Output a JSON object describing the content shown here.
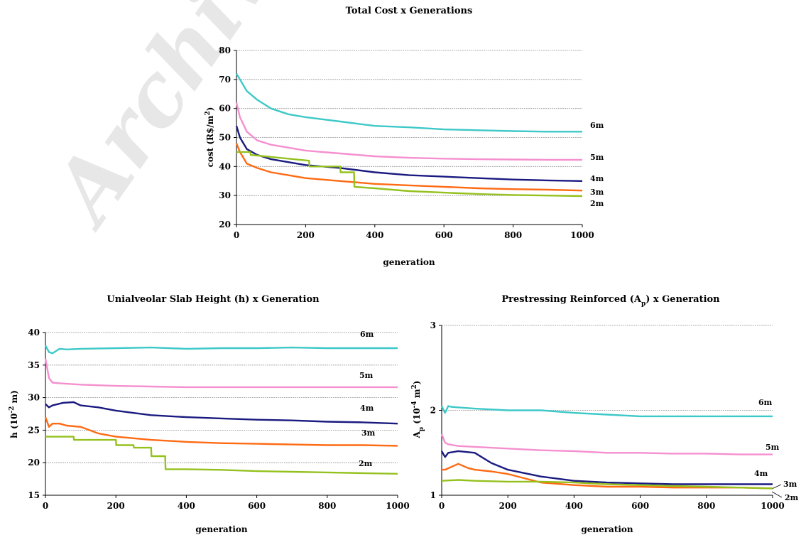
{
  "watermark": "Archive",
  "chart_data": [
    {
      "type": "line",
      "title": "Total Cost x Generations",
      "xlabel": "generation",
      "ylabel": "cost (R$/m²)",
      "ylabel_html": {
        "main": "cost (R$/m",
        "sup": "2",
        "tail": ")"
      },
      "xlim": [
        0,
        1000
      ],
      "ylim": [
        20,
        80
      ],
      "xticks": [
        0,
        200,
        400,
        600,
        800,
        1000
      ],
      "yticks": [
        20,
        30,
        40,
        50,
        60,
        70,
        80
      ],
      "grid": true,
      "series": [
        {
          "name": "6m",
          "color": "#3ec8c8",
          "x": [
            0,
            10,
            30,
            60,
            100,
            150,
            200,
            300,
            400,
            500,
            600,
            700,
            800,
            900,
            1000
          ],
          "y": [
            72,
            70,
            66,
            63,
            60,
            58,
            57,
            55.5,
            54,
            53.5,
            52.8,
            52.5,
            52.2,
            52,
            52
          ]
        },
        {
          "name": "5m",
          "color": "#f58fcf",
          "x": [
            0,
            10,
            30,
            60,
            100,
            150,
            200,
            300,
            400,
            500,
            600,
            700,
            800,
            900,
            1000
          ],
          "y": [
            62,
            57,
            52,
            49,
            47.5,
            46.5,
            45.5,
            44.5,
            43.5,
            43,
            42.7,
            42.5,
            42.4,
            42.3,
            42.3
          ]
        },
        {
          "name": "4m",
          "color": "#1a1a80",
          "x": [
            0,
            10,
            30,
            60,
            100,
            150,
            200,
            300,
            400,
            500,
            600,
            700,
            800,
            900,
            1000
          ],
          "y": [
            54,
            50,
            46,
            44,
            42.5,
            41.5,
            40.5,
            39.5,
            38,
            37,
            36.5,
            36,
            35.5,
            35.2,
            35
          ]
        },
        {
          "name": "3m",
          "color": "#ff6a13",
          "x": [
            0,
            10,
            30,
            60,
            100,
            150,
            200,
            300,
            400,
            500,
            600,
            700,
            800,
            900,
            1000
          ],
          "y": [
            48,
            45,
            41,
            39.5,
            38,
            37,
            36,
            35,
            34,
            33.5,
            33,
            32.5,
            32.2,
            32,
            31.7
          ]
        },
        {
          "name": "2m",
          "color": "#95c11f",
          "x": [
            0,
            40,
            41,
            210,
            211,
            300,
            301,
            340,
            341,
            400,
            500,
            600,
            700,
            800,
            900,
            1000
          ],
          "y": [
            45,
            45,
            44,
            42,
            40,
            40,
            38,
            38,
            33,
            32.5,
            31.5,
            31,
            30.5,
            30.2,
            30,
            29.8
          ]
        }
      ]
    },
    {
      "type": "line",
      "title": "Unialveolar Slab Height (h) x Generation",
      "xlabel": "generation",
      "ylabel": "h (10⁻² m)",
      "ylabel_html": {
        "main": "h (10",
        "sup": "-2",
        "tail": " m)"
      },
      "xlim": [
        0,
        1000
      ],
      "ylim": [
        15,
        40
      ],
      "xticks": [
        0,
        200,
        400,
        600,
        800,
        1000
      ],
      "yticks": [
        15,
        20,
        25,
        30,
        35,
        40
      ],
      "grid": true,
      "series": [
        {
          "name": "6m",
          "color": "#3ec8c8",
          "x": [
            0,
            10,
            20,
            40,
            60,
            100,
            200,
            300,
            400,
            500,
            600,
            700,
            800,
            900,
            1000
          ],
          "y": [
            38,
            37,
            36.8,
            37.5,
            37.4,
            37.5,
            37.6,
            37.7,
            37.5,
            37.6,
            37.6,
            37.7,
            37.6,
            37.6,
            37.6
          ]
        },
        {
          "name": "5m",
          "color": "#f58fcf",
          "x": [
            0,
            10,
            20,
            40,
            100,
            200,
            300,
            400,
            500,
            600,
            700,
            800,
            900,
            1000
          ],
          "y": [
            36,
            33,
            32.3,
            32.2,
            32,
            31.8,
            31.7,
            31.6,
            31.6,
            31.6,
            31.6,
            31.6,
            31.6,
            31.6
          ]
        },
        {
          "name": "4m",
          "color": "#1a1a80",
          "x": [
            0,
            10,
            20,
            50,
            80,
            100,
            150,
            200,
            300,
            400,
            500,
            600,
            700,
            800,
            900,
            1000
          ],
          "y": [
            29,
            28.5,
            28.8,
            29.2,
            29.3,
            28.8,
            28.5,
            28,
            27.3,
            27,
            26.8,
            26.6,
            26.5,
            26.3,
            26.2,
            26
          ]
        },
        {
          "name": "3m",
          "color": "#ff6a13",
          "x": [
            0,
            10,
            20,
            40,
            60,
            100,
            150,
            200,
            300,
            400,
            500,
            600,
            700,
            800,
            900,
            1000
          ],
          "y": [
            27,
            25.5,
            26,
            26,
            25.7,
            25.5,
            24.5,
            24,
            23.5,
            23.2,
            23,
            22.9,
            22.8,
            22.7,
            22.7,
            22.6
          ]
        },
        {
          "name": "2m",
          "color": "#95c11f",
          "x": [
            0,
            80,
            81,
            200,
            201,
            250,
            251,
            300,
            301,
            340,
            341,
            400,
            500,
            600,
            700,
            800,
            900,
            1000
          ],
          "y": [
            24,
            24,
            23.5,
            23.5,
            22.7,
            22.7,
            22.3,
            22.3,
            21,
            21,
            19,
            19,
            18.9,
            18.7,
            18.6,
            18.5,
            18.4,
            18.3
          ]
        }
      ]
    },
    {
      "type": "line",
      "title": "Prestressing Reinforced (Ap) x Generation",
      "title_html": {
        "main": "Prestressing Reinforced (A",
        "sub": "p",
        "tail": ") x Generation"
      },
      "xlabel": "generation",
      "ylabel": "Ap (10⁻⁴ m²)",
      "ylabel_html": {
        "main": "A",
        "sub": "p",
        "mid": " (10",
        "sup": "-4",
        "mid2": " m",
        "sup2": "2",
        "tail": ")"
      },
      "xlim": [
        0,
        1000
      ],
      "ylim": [
        1,
        3
      ],
      "xticks": [
        0,
        200,
        400,
        600,
        800,
        1000
      ],
      "yticks": [
        1,
        2,
        3
      ],
      "grid": true,
      "series": [
        {
          "name": "6m",
          "color": "#3ec8c8",
          "x": [
            0,
            10,
            20,
            30,
            100,
            200,
            300,
            400,
            500,
            600,
            700,
            800,
            900,
            1000
          ],
          "y": [
            2.05,
            1.97,
            2.05,
            2.04,
            2.02,
            2.0,
            2.0,
            1.97,
            1.95,
            1.93,
            1.93,
            1.93,
            1.93,
            1.93
          ]
        },
        {
          "name": "5m",
          "color": "#f58fcf",
          "x": [
            0,
            10,
            20,
            50,
            100,
            200,
            300,
            400,
            500,
            600,
            700,
            800,
            900,
            1000
          ],
          "y": [
            1.72,
            1.62,
            1.6,
            1.58,
            1.57,
            1.55,
            1.53,
            1.52,
            1.5,
            1.5,
            1.49,
            1.49,
            1.48,
            1.48
          ]
        },
        {
          "name": "4m",
          "color": "#1a1a80",
          "x": [
            0,
            10,
            20,
            50,
            100,
            150,
            200,
            300,
            400,
            500,
            600,
            700,
            800,
            900,
            1000
          ],
          "y": [
            1.52,
            1.45,
            1.5,
            1.52,
            1.5,
            1.38,
            1.3,
            1.22,
            1.17,
            1.15,
            1.14,
            1.13,
            1.13,
            1.13,
            1.13
          ]
        },
        {
          "name": "3m",
          "color": "#ff6a13",
          "x": [
            0,
            10,
            50,
            80,
            100,
            150,
            200,
            300,
            400,
            500,
            600,
            700,
            800,
            900,
            1000
          ],
          "y": [
            1.3,
            1.3,
            1.37,
            1.32,
            1.3,
            1.28,
            1.25,
            1.15,
            1.12,
            1.1,
            1.1,
            1.09,
            1.09,
            1.09,
            1.08
          ]
        },
        {
          "name": "2m",
          "color": "#95c11f",
          "x": [
            0,
            50,
            100,
            200,
            300,
            400,
            500,
            600,
            700,
            800,
            900,
            1000
          ],
          "y": [
            1.17,
            1.18,
            1.17,
            1.16,
            1.16,
            1.15,
            1.13,
            1.12,
            1.11,
            1.1,
            1.09,
            1.08
          ]
        }
      ]
    }
  ]
}
